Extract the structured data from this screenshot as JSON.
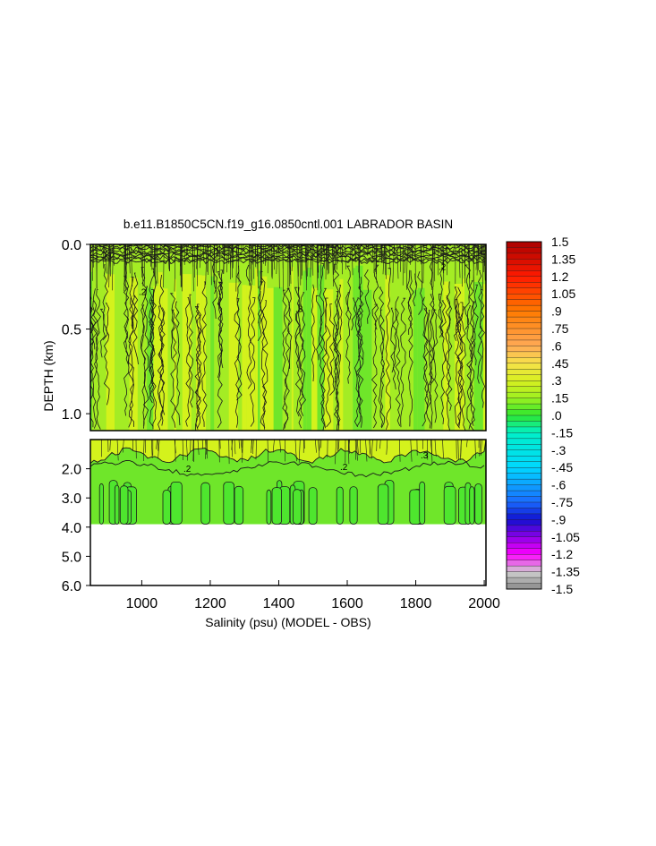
{
  "chart_data": {
    "type": "heatmap",
    "title": "b.e11.B1850C5CN.f19_g16.0850cntl.001 LABRADOR BASIN",
    "xlabel": "Salinity (psu) (MODEL - OBS)",
    "ylabel": "DEPTH (km)",
    "xlim": [
      850,
      2005
    ],
    "x_ticks": [
      "1000",
      "1200",
      "1400",
      "1600",
      "1800",
      "2000"
    ],
    "x_tick_values": [
      1000,
      1200,
      1400,
      1600,
      1800,
      2000
    ],
    "upper_panel": {
      "ylim": [
        0.0,
        1.1
      ],
      "y_ticks": [
        "0.0",
        "0.5",
        "1.0"
      ],
      "y_tick_values": [
        0.0,
        0.5,
        1.0
      ]
    },
    "lower_panel": {
      "ylim": [
        1.0,
        6.0
      ],
      "y_ticks": [
        "2.0",
        "3.0",
        "4.0",
        "5.0",
        "6.0"
      ],
      "y_tick_values": [
        2.0,
        3.0,
        4.0,
        5.0,
        6.0
      ],
      "data_bottom_depth": 3.9
    },
    "colorbar": {
      "labels": [
        "1.5",
        "1.35",
        "1.2",
        "1.05",
        ".9",
        ".75",
        ".6",
        ".45",
        ".3",
        ".15",
        ".0",
        "-.15",
        "-.3",
        "-.45",
        "-.6",
        "-.75",
        "-.9",
        "-1.05",
        "-1.2",
        "-1.35",
        "-1.5"
      ],
      "min": -1.5,
      "max": 1.5,
      "stops": [
        {
          "value": 1.5,
          "color": "#aa0000"
        },
        {
          "value": 1.2,
          "color": "#ff1a00"
        },
        {
          "value": 0.9,
          "color": "#ff7a00"
        },
        {
          "value": 0.6,
          "color": "#ffaa55"
        },
        {
          "value": 0.45,
          "color": "#f6e24a"
        },
        {
          "value": 0.3,
          "color": "#d8f020"
        },
        {
          "value": 0.15,
          "color": "#9df020"
        },
        {
          "value": 0.0,
          "color": "#2ee82e"
        },
        {
          "value": -0.15,
          "color": "#00f0c8"
        },
        {
          "value": -0.45,
          "color": "#00d8ff"
        },
        {
          "value": -0.75,
          "color": "#1a6aff"
        },
        {
          "value": -0.9,
          "color": "#1010d0"
        },
        {
          "value": -1.05,
          "color": "#8a00e8"
        },
        {
          "value": -1.2,
          "color": "#ff00ff"
        },
        {
          "value": -1.35,
          "color": "#d0d0d0"
        },
        {
          "value": -1.5,
          "color": "#8a8a8a"
        }
      ]
    },
    "field_summary": {
      "upper_dominant_range": [
        0.15,
        0.45
      ],
      "lower_upper_layer_value": 0.3,
      "lower_deep_value": 0.0,
      "contour_labels": [
        ".2",
        ".3"
      ]
    },
    "colors": {
      "yellow_green": "#d4f21c",
      "light_green": "#a4ec24",
      "mid_green": "#6fe62a",
      "deep_green": "#4ee62e",
      "contour": "#1a1a1a"
    }
  }
}
